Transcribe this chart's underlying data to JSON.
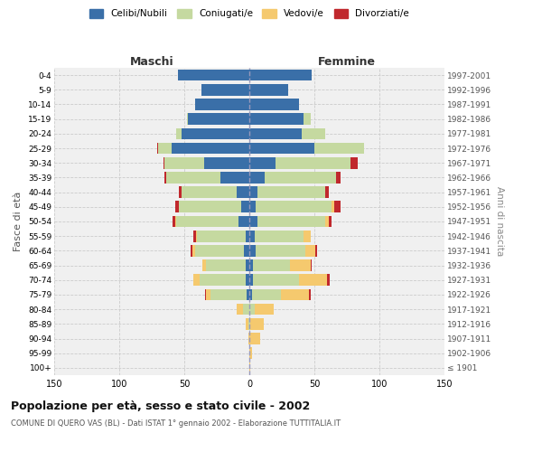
{
  "age_groups": [
    "100+",
    "95-99",
    "90-94",
    "85-89",
    "80-84",
    "75-79",
    "70-74",
    "65-69",
    "60-64",
    "55-59",
    "50-54",
    "45-49",
    "40-44",
    "35-39",
    "30-34",
    "25-29",
    "20-24",
    "15-19",
    "10-14",
    "5-9",
    "0-4"
  ],
  "birth_years": [
    "≤ 1901",
    "1902-1906",
    "1907-1911",
    "1912-1916",
    "1917-1921",
    "1922-1926",
    "1927-1931",
    "1932-1936",
    "1937-1941",
    "1942-1946",
    "1947-1951",
    "1952-1956",
    "1957-1961",
    "1962-1966",
    "1967-1971",
    "1972-1976",
    "1977-1981",
    "1982-1986",
    "1987-1991",
    "1992-1996",
    "1997-2001"
  ],
  "male": {
    "celibi": [
      0,
      0,
      0,
      0,
      0,
      2,
      3,
      3,
      4,
      3,
      8,
      6,
      10,
      22,
      35,
      60,
      52,
      47,
      42,
      37,
      55
    ],
    "coniugati": [
      0,
      0,
      0,
      1,
      5,
      28,
      35,
      30,
      38,
      37,
      48,
      48,
      42,
      42,
      30,
      10,
      4,
      1,
      0,
      0,
      0
    ],
    "vedovi": [
      0,
      0,
      1,
      2,
      5,
      3,
      5,
      3,
      2,
      1,
      1,
      0,
      0,
      0,
      0,
      0,
      0,
      0,
      0,
      0,
      0
    ],
    "divorziati": [
      0,
      0,
      0,
      0,
      0,
      1,
      0,
      0,
      1,
      2,
      2,
      3,
      2,
      1,
      1,
      1,
      0,
      0,
      0,
      0,
      0
    ]
  },
  "female": {
    "nubili": [
      0,
      0,
      0,
      0,
      0,
      2,
      3,
      3,
      5,
      4,
      6,
      5,
      6,
      12,
      20,
      50,
      40,
      42,
      38,
      30,
      48
    ],
    "coniugate": [
      0,
      0,
      0,
      1,
      4,
      22,
      35,
      28,
      38,
      38,
      52,
      58,
      52,
      55,
      58,
      38,
      18,
      5,
      0,
      0,
      0
    ],
    "vedove": [
      1,
      2,
      8,
      10,
      15,
      22,
      22,
      16,
      8,
      5,
      3,
      2,
      0,
      0,
      0,
      0,
      0,
      0,
      0,
      0,
      0
    ],
    "divorziate": [
      0,
      0,
      0,
      0,
      0,
      1,
      2,
      1,
      1,
      0,
      2,
      5,
      3,
      3,
      5,
      0,
      0,
      0,
      0,
      0,
      0
    ]
  },
  "colors": {
    "celibi": "#3a6fa8",
    "coniugati": "#c5d9a0",
    "vedovi": "#f5c96e",
    "divorziati": "#c0282d"
  },
  "xlim": 150,
  "title": "Popolazione per età, sesso e stato civile - 2002",
  "subtitle": "COMUNE DI QUERO VAS (BL) - Dati ISTAT 1° gennaio 2002 - Elaborazione TUTTITALIA.IT",
  "xlabel_left": "Maschi",
  "xlabel_right": "Femmine",
  "ylabel_left": "Fasce di età",
  "ylabel_right": "Anni di nascita",
  "background_color": "#f0f0f0",
  "grid_color": "#cccccc"
}
